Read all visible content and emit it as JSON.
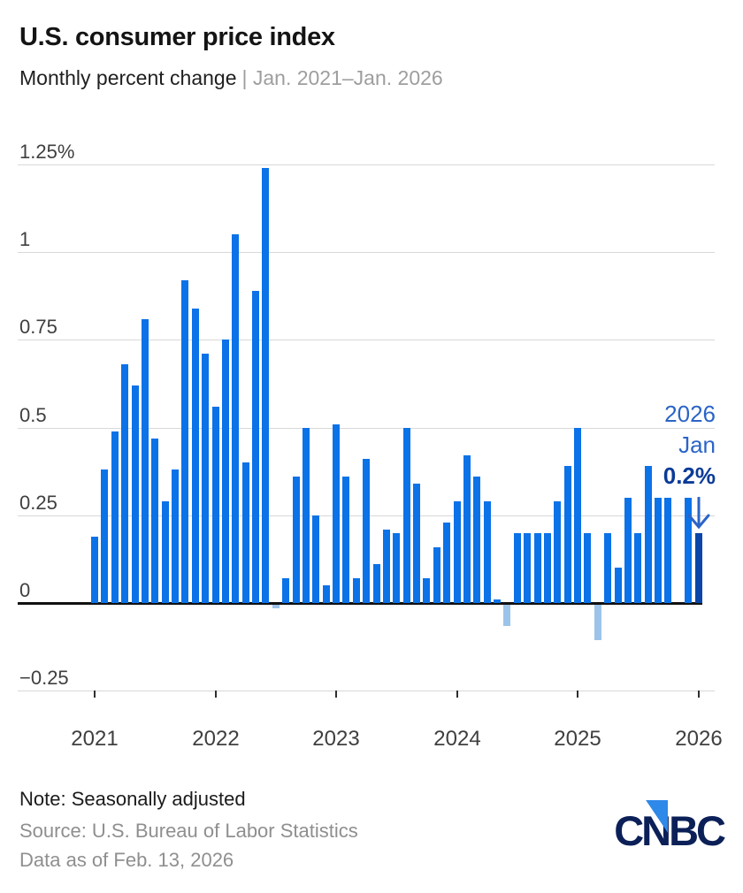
{
  "header": {
    "title": "U.S. consumer price index",
    "subtitle_dark": "Monthly percent change",
    "subtitle_light": "| Jan. 2021–Jan. 2026"
  },
  "chart_data": {
    "type": "bar",
    "title": "U.S. consumer price index",
    "subtitle": "Monthly percent change | Jan. 2021–Jan. 2026",
    "unit": "percent",
    "grid": true,
    "ylim": [
      -0.25,
      1.35
    ],
    "yticks": [
      {
        "label": "1.25%",
        "v": 1.25
      },
      {
        "label": "1",
        "v": 1.0
      },
      {
        "label": "0.75",
        "v": 0.75
      },
      {
        "label": "0.5",
        "v": 0.5
      },
      {
        "label": "0.25",
        "v": 0.25
      },
      {
        "label": "0",
        "v": 0
      },
      {
        "label": "−0.25",
        "v": -0.25
      }
    ],
    "xticks": [
      "2021",
      "2022",
      "2023",
      "2024",
      "2025",
      "2026"
    ],
    "months": [
      "Jan 2021",
      "Feb 2021",
      "Mar 2021",
      "Apr 2021",
      "May 2021",
      "Jun 2021",
      "Jul 2021",
      "Aug 2021",
      "Sep 2021",
      "Oct 2021",
      "Nov 2021",
      "Dec 2021",
      "Jan 2022",
      "Feb 2022",
      "Mar 2022",
      "Apr 2022",
      "May 2022",
      "Jun 2022",
      "Jul 2022",
      "Aug 2022",
      "Sep 2022",
      "Oct 2022",
      "Nov 2022",
      "Dec 2022",
      "Jan 2023",
      "Feb 2023",
      "Mar 2023",
      "Apr 2023",
      "May 2023",
      "Jun 2023",
      "Jul 2023",
      "Aug 2023",
      "Sep 2023",
      "Oct 2023",
      "Nov 2023",
      "Dec 2023",
      "Jan 2024",
      "Feb 2024",
      "Mar 2024",
      "Apr 2024",
      "May 2024",
      "Jun 2024",
      "Jul 2024",
      "Aug 2024",
      "Sep 2024",
      "Oct 2024",
      "Nov 2024",
      "Dec 2024",
      "Jan 2025",
      "Feb 2025",
      "Mar 2025",
      "Apr 2025",
      "May 2025",
      "Jun 2025",
      "Jul 2025",
      "Aug 2025",
      "Sep 2025",
      "Oct 2025",
      "Nov 2025",
      "Dec 2025",
      "Jan 2026"
    ],
    "values": [
      0.19,
      0.38,
      0.49,
      0.68,
      0.62,
      0.81,
      0.47,
      0.29,
      0.38,
      0.92,
      0.84,
      0.71,
      0.56,
      0.75,
      1.05,
      0.4,
      0.89,
      1.24,
      -0.01,
      0.07,
      0.36,
      0.5,
      0.25,
      0.05,
      0.51,
      0.36,
      0.07,
      0.41,
      0.11,
      0.21,
      0.2,
      0.5,
      0.34,
      0.07,
      0.16,
      0.23,
      0.29,
      0.42,
      0.36,
      0.29,
      0.01,
      -0.06,
      0.2,
      0.2,
      0.2,
      0.2,
      0.29,
      0.39,
      0.5,
      0.2,
      -0.1,
      0.2,
      0.1,
      0.3,
      0.2,
      0.39,
      0.3,
      0.3,
      0.0,
      0.3,
      0.2
    ],
    "annotation": {
      "year": "2026",
      "month": "Jan",
      "value": "0.2%",
      "arrow": "down"
    },
    "colors": {
      "bar": "#0B72E8",
      "negative_bar": "#9CC3EA",
      "highlight_bar": "#0A45A8",
      "annotation_blue": "#2B64C7",
      "annotation_navy": "#0B3B97",
      "gridline": "#d8d8d8",
      "zero_line": "#111111"
    },
    "legend": null
  },
  "footer": {
    "note": "Note: Seasonally adjusted",
    "source": "Source: U.S. Bureau of Labor Statistics",
    "as_of": "Data as of Feb. 13, 2026",
    "logo_c1": "C",
    "logo_n": "N",
    "logo_b": "B",
    "logo_c2": "C"
  }
}
